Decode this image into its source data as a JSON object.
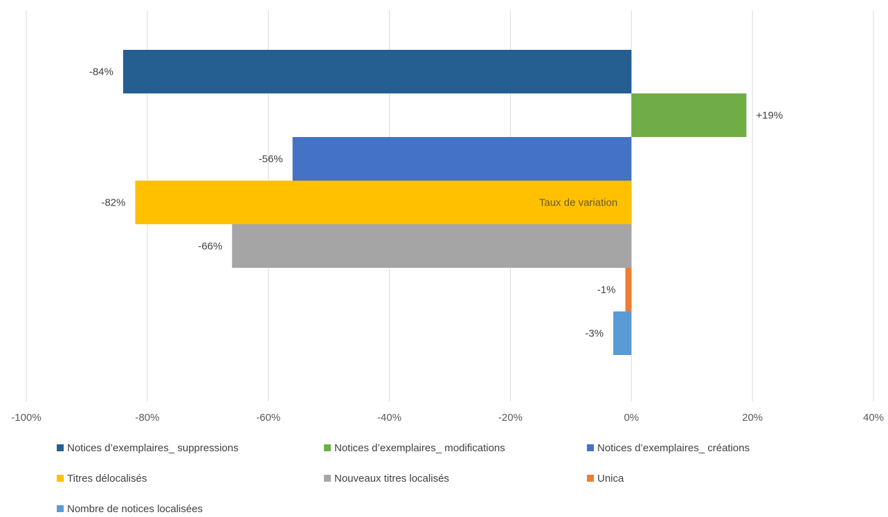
{
  "chart_data": {
    "type": "bar",
    "orientation": "horizontal",
    "title": "",
    "xlabel": "",
    "ylabel": "",
    "xlim": [
      -100,
      40
    ],
    "x_ticks": [
      {
        "value": -100,
        "label": "-100%"
      },
      {
        "value": -80,
        "label": "-80%"
      },
      {
        "value": -60,
        "label": "-60%"
      },
      {
        "value": -40,
        "label": "-40%"
      },
      {
        "value": -20,
        "label": "-20%"
      },
      {
        "value": 0,
        "label": "0%"
      },
      {
        "value": 20,
        "label": "20%"
      },
      {
        "value": 40,
        "label": "40%"
      }
    ],
    "grid": "vertical",
    "category": "Taux de variation",
    "legend_position": "bottom",
    "series": [
      {
        "name": "Notices d’exemplaires_ suppressions",
        "value": -84,
        "label": "-84%",
        "color": "#255e91"
      },
      {
        "name": "Notices d’exemplaires_ modifications",
        "value": 19,
        "label": "+19%",
        "color": "#70ad47"
      },
      {
        "name": "Notices d’exemplaires_ créations",
        "value": -56,
        "label": "-56%",
        "color": "#4472c4"
      },
      {
        "name": "Titres délocalisés",
        "value": -82,
        "label": "-82%",
        "color": "#ffc000"
      },
      {
        "name": "Nouveaux titres localisés",
        "value": -66,
        "label": "-66%",
        "color": "#a5a5a5"
      },
      {
        "name": "Unica",
        "value": -1,
        "label": "-1%",
        "color": "#ed7d31"
      },
      {
        "name": "Nombre de notices localisées",
        "value": -3,
        "label": "-3%",
        "color": "#5b9bd5"
      }
    ]
  }
}
